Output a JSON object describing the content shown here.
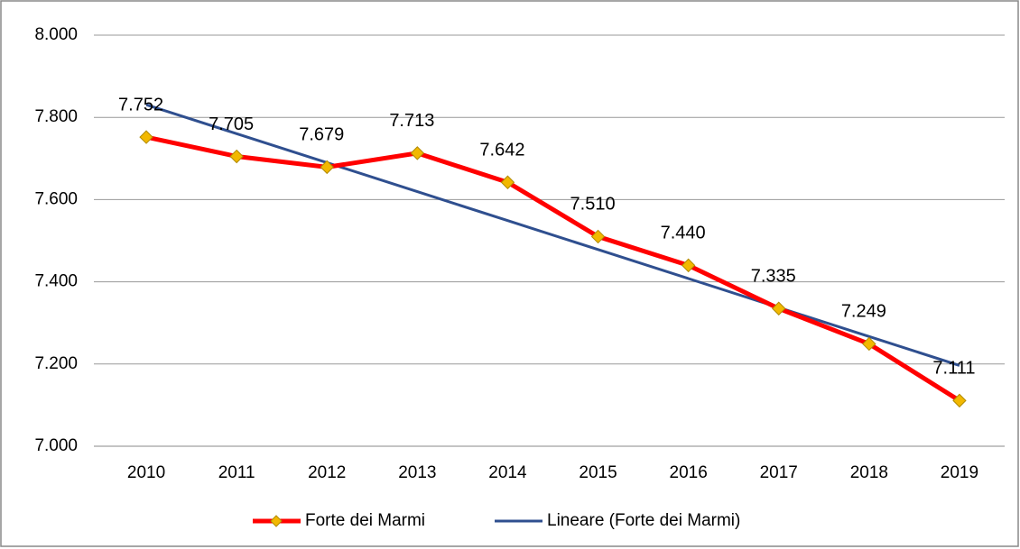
{
  "chart_data": {
    "type": "line",
    "categories": [
      "2010",
      "2011",
      "2012",
      "2013",
      "2014",
      "2015",
      "2016",
      "2017",
      "2018",
      "2019"
    ],
    "series": [
      {
        "name": "Forte dei Marmi",
        "color": "#ff0000",
        "marker_color": "#f2b800",
        "values": [
          7752,
          7705,
          7679,
          7713,
          7642,
          7510,
          7440,
          7335,
          7249,
          7111
        ],
        "value_labels": [
          "7.752",
          "7.705",
          "7.679",
          "7.713",
          "7.642",
          "7.510",
          "7.440",
          "7.335",
          "7.249",
          "7.111"
        ]
      },
      {
        "name": "Lineare (Forte dei Marmi)",
        "color": "#2f4f8f",
        "values": [
          7830.8,
          7760.3,
          7689.8,
          7619.3,
          7548.9,
          7478.4,
          7407.9,
          7337.4,
          7266.9,
          7196.4
        ]
      }
    ],
    "ylim": [
      7000,
      8000
    ],
    "yticks": [
      {
        "value": 7000,
        "label": "7.000"
      },
      {
        "value": 7200,
        "label": "7.200"
      },
      {
        "value": 7400,
        "label": "7.400"
      },
      {
        "value": 7600,
        "label": "7.600"
      },
      {
        "value": 7800,
        "label": "7.800"
      },
      {
        "value": 8000,
        "label": "8.000"
      }
    ],
    "grid": true,
    "legend": "bottom"
  }
}
